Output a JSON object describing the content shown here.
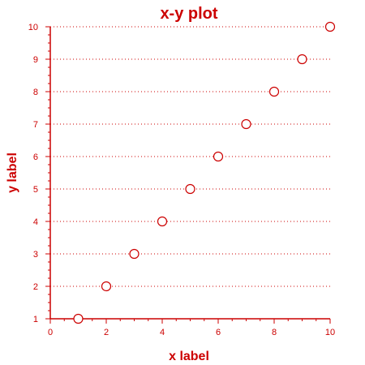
{
  "chart_data": {
    "type": "scatter",
    "title": "x-y plot",
    "xlabel": "x label",
    "ylabel": "y label",
    "xlim": [
      0,
      10
    ],
    "ylim": [
      1,
      10
    ],
    "x_ticks": [
      "0",
      "2",
      "4",
      "6",
      "8",
      "10"
    ],
    "y_ticks": [
      "1",
      "2",
      "3",
      "4",
      "5",
      "6",
      "7",
      "8",
      "9",
      "10"
    ],
    "grid": "horizontal dotted lines at each y tick",
    "marker": "open circle",
    "color": "#cc0000",
    "series": [
      {
        "x": [
          1,
          2,
          3,
          4,
          5,
          6,
          7,
          8,
          9,
          10
        ],
        "y": [
          1,
          2,
          3,
          4,
          5,
          6,
          7,
          8,
          9,
          10
        ]
      }
    ]
  }
}
